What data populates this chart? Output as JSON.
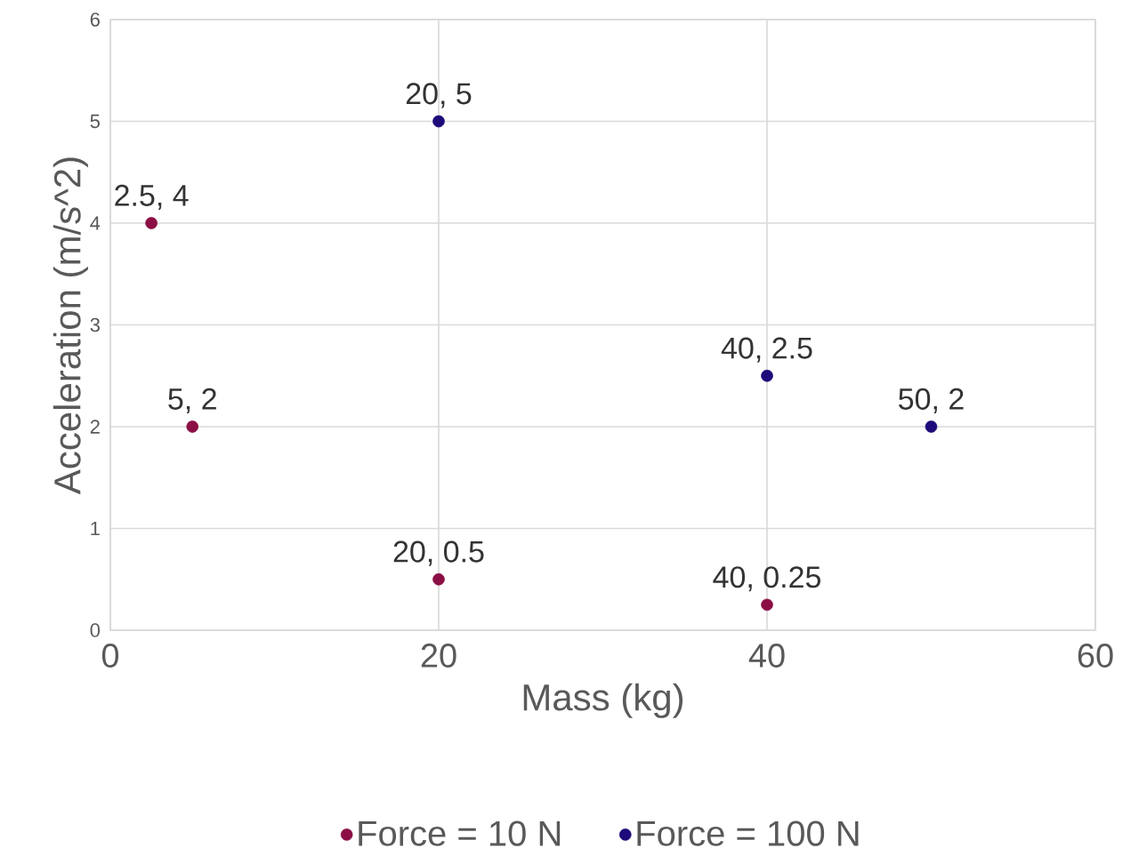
{
  "chart_data": {
    "type": "scatter",
    "xlabel": "Mass (kg)",
    "ylabel": "Acceleration (m/s^2)",
    "xlim": [
      0,
      60
    ],
    "xticks": [
      0,
      20,
      40,
      60
    ],
    "ylim": [
      0,
      6
    ],
    "yticks": [
      0,
      1,
      2,
      3,
      4,
      5,
      6
    ],
    "grid": true,
    "legend": "bottom",
    "marker": "circle",
    "series": [
      {
        "name": "Force = 10 N",
        "color": "#8b0f45",
        "x": [
          2.5,
          5,
          20,
          40
        ],
        "values": [
          4,
          2,
          0.5,
          0.25
        ],
        "value_labels": [
          "2.5, 4",
          "5, 2",
          "20, 0.5",
          "40, 0.25"
        ]
      },
      {
        "name": "Force = 100 N",
        "color": "#1f0a7a",
        "x": [
          20,
          40,
          50
        ],
        "values": [
          5,
          2.5,
          2
        ],
        "value_labels": [
          "20, 5",
          "40, 2.5",
          "50, 2"
        ]
      }
    ]
  }
}
